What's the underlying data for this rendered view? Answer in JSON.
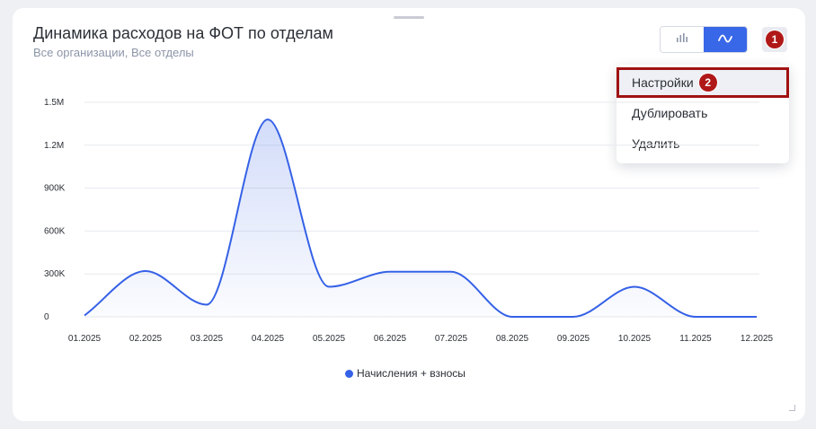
{
  "widget": {
    "title": "Динамика расходов на ФОТ по отделам",
    "subtitle": "Все организации, Все отделы"
  },
  "view_toggle": {
    "bar_icon": "bar-chart-icon",
    "line_icon": "line-chart-icon",
    "active": "line"
  },
  "annotations": {
    "menu_badge": "1",
    "settings_badge": "2"
  },
  "menu": {
    "items": [
      {
        "label": "Настройки"
      },
      {
        "label": "Дублировать"
      },
      {
        "label": "Удалить"
      }
    ]
  },
  "colors": {
    "accent": "#3867e8",
    "line": "#3561e6",
    "annotation": "#b01818"
  },
  "chart_data": {
    "type": "area",
    "categories": [
      "01.2025",
      "02.2025",
      "03.2025",
      "04.2025",
      "05.2025",
      "06.2025",
      "07.2025",
      "08.2025",
      "09.2025",
      "10.2025",
      "11.2025",
      "12.2025"
    ],
    "series": [
      {
        "name": "Начисления + взносы",
        "values": [
          10000,
          320000,
          85000,
          1380000,
          210000,
          315000,
          315000,
          0,
          0,
          210000,
          0,
          0
        ]
      }
    ],
    "y_ticks": [
      "0",
      "300K",
      "600K",
      "900K",
      "1.2M",
      "1.5M"
    ],
    "ylim": [
      0,
      1500000
    ],
    "grid": true,
    "legend_position": "bottom"
  }
}
